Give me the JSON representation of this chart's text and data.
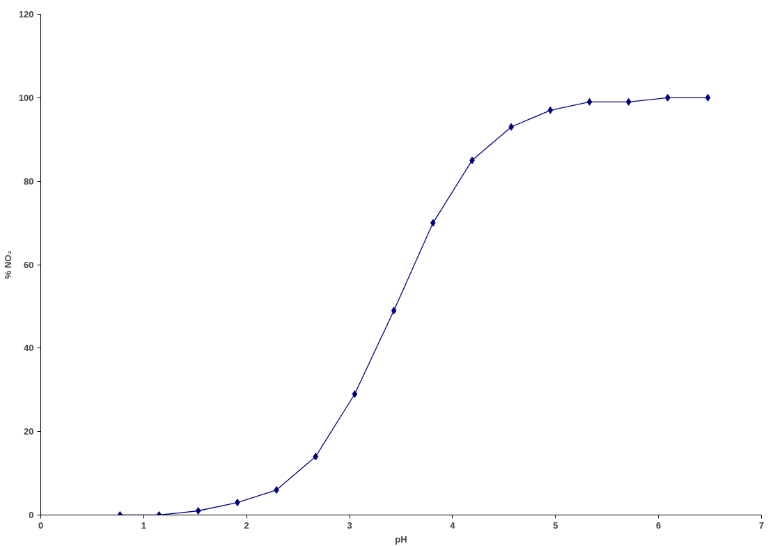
{
  "chart_data": {
    "type": "line",
    "xlabel": "pH",
    "ylabel": "% NO₂",
    "x": [
      0.77,
      1.15,
      1.53,
      1.91,
      2.29,
      2.67,
      3.05,
      3.43,
      3.81,
      4.19,
      4.57,
      4.95,
      5.33,
      5.71,
      6.09,
      6.48
    ],
    "series": [
      {
        "color": "#000080",
        "values": [
          0,
          0,
          1,
          3,
          6,
          14,
          29,
          49,
          70,
          85,
          93,
          97,
          99,
          99,
          100,
          100
        ]
      }
    ],
    "xlim": [
      0,
      7
    ],
    "xticks": [
      0,
      1,
      2,
      3,
      4,
      5,
      6,
      7
    ],
    "ylim": [
      0,
      120
    ],
    "yticks": [
      0,
      20,
      40,
      60,
      80,
      100,
      120
    ],
    "grid": false,
    "marker": "diamond",
    "line_style": "solid"
  }
}
